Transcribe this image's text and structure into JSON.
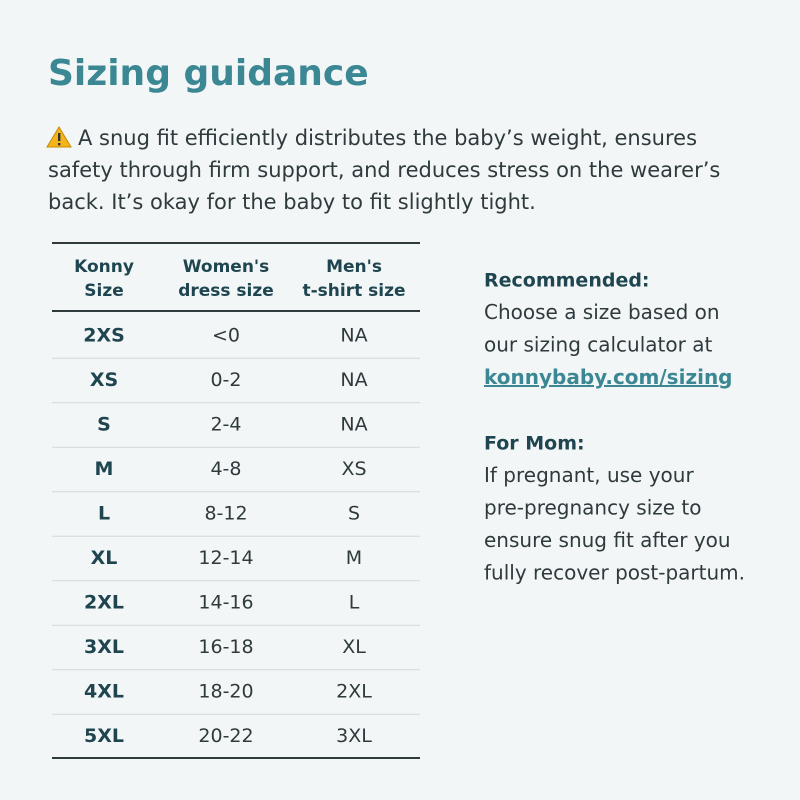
{
  "header": {
    "title": "Sizing guidance"
  },
  "intro": {
    "lines": [
      "A snug fit efficiently distributes the baby’s weight, ensures",
      "safety through firm support, and reduces stress on the wearer’s",
      "back. It’s okay for the baby to fit slightly tight."
    ]
  },
  "table": {
    "headers": [
      [
        "Konny",
        "Size"
      ],
      [
        "Women's",
        "dress size"
      ],
      [
        "Men's",
        "t-shirt size"
      ]
    ],
    "rows": [
      [
        "2XS",
        "<0",
        "NA"
      ],
      [
        "XS",
        "0-2",
        "NA"
      ],
      [
        "S",
        "2-4",
        "NA"
      ],
      [
        "M",
        "4-8",
        "XS"
      ],
      [
        "L",
        "8-12",
        "S"
      ],
      [
        "XL",
        "12-14",
        "M"
      ],
      [
        "2XL",
        "14-16",
        "L"
      ],
      [
        "3XL",
        "16-18",
        "XL"
      ],
      [
        "4XL",
        "18-20",
        "2XL"
      ],
      [
        "5XL",
        "20-22",
        "3XL"
      ]
    ]
  },
  "recommended": {
    "heading": "Recommended:",
    "lines": [
      "Choose a size based on",
      "our sizing calculator at"
    ],
    "link": "konnybaby.com/sizing"
  },
  "mom": {
    "heading": "For Mom:",
    "lines": [
      "If pregnant, use your",
      "pre-pregnancy size to",
      "ensure snug fit after you",
      "fully recover post-partum."
    ]
  }
}
